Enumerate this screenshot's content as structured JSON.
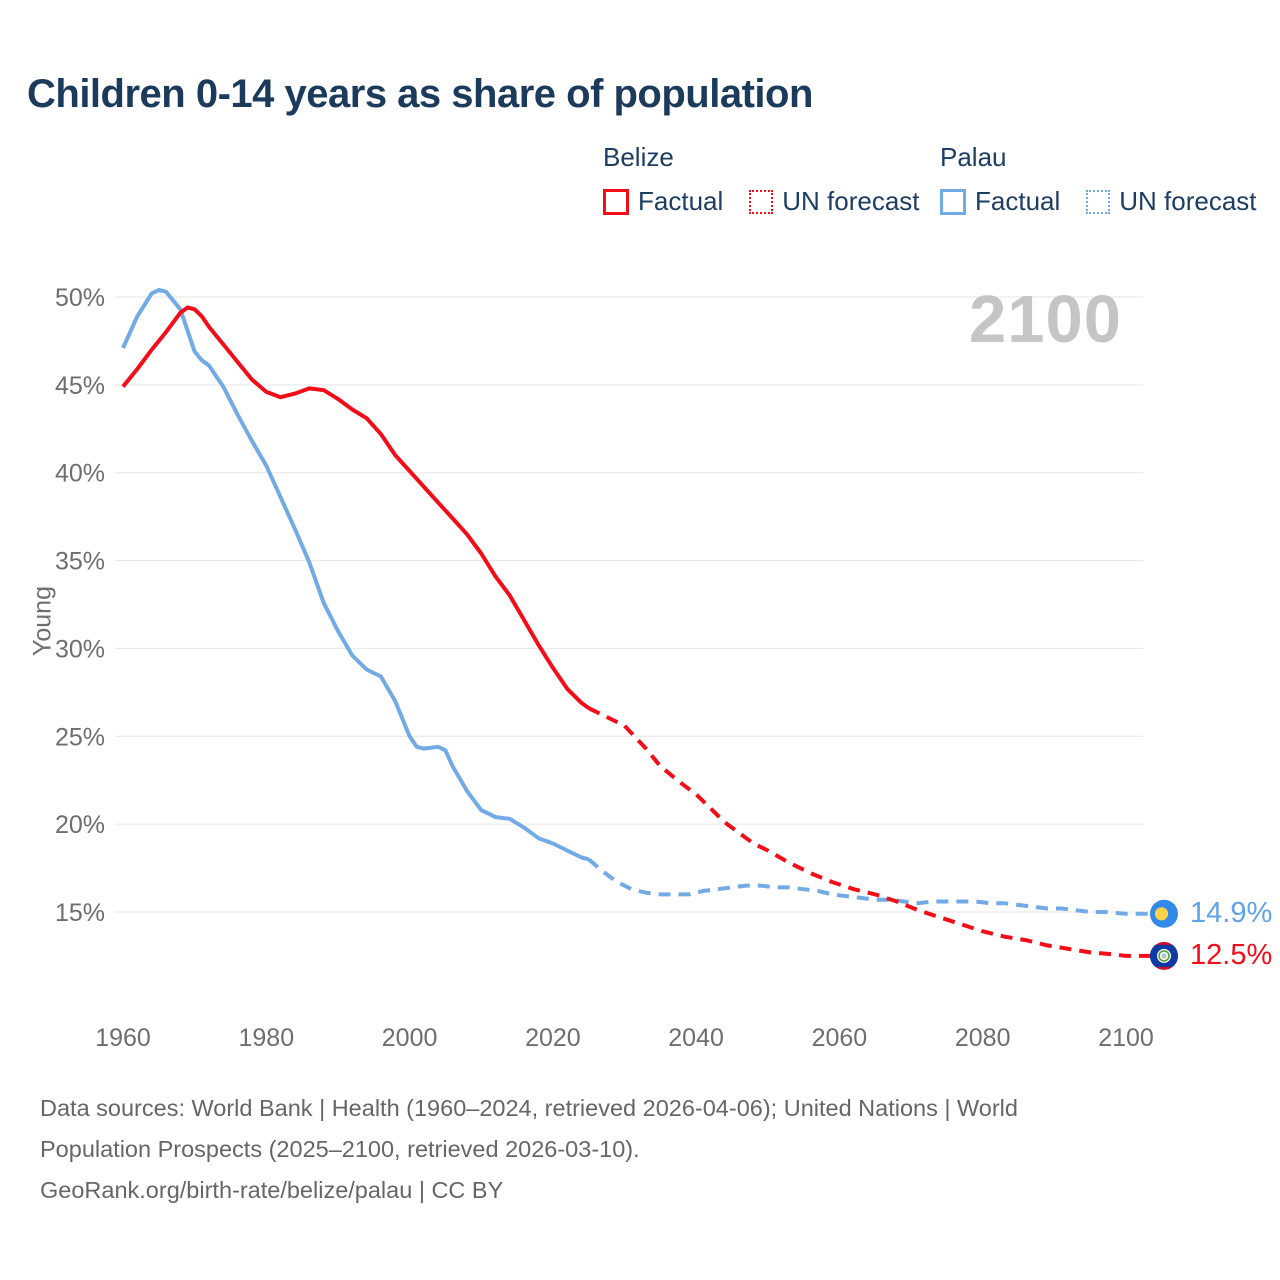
{
  "title": "Children 0-14 years as share of population",
  "watermark": "2100",
  "legend": {
    "groups": [
      {
        "name": "Belize",
        "color": "#f20d19",
        "items": [
          {
            "label": "Factual",
            "style": "solid"
          },
          {
            "label": "UN forecast",
            "style": "dotted"
          }
        ]
      },
      {
        "name": "Palau",
        "color": "#72aae6",
        "items": [
          {
            "label": "Factual",
            "style": "solid"
          },
          {
            "label": "UN forecast",
            "style": "dotted"
          }
        ]
      }
    ]
  },
  "end_labels": [
    {
      "series": "Palau",
      "text": "14.9%",
      "value": 14.9
    },
    {
      "series": "Belize",
      "text": "12.5%",
      "value": 12.5
    }
  ],
  "footer": {
    "line1": "Data sources: World Bank | Health (1960–2024, retrieved 2026-04-06); United Nations | World",
    "line2": "Population Prospects (2025–2100, retrieved 2026-03-10).",
    "line3": "GeoRank.org/birth-rate/belize/palau | CC BY"
  },
  "colors": {
    "belize": "#f20d19",
    "palau": "#72aae6",
    "title_text": "#1b3a5c",
    "tick_text": "#6e6e6e",
    "gridline": "#e6e6e6",
    "watermark": "#c5c5c5",
    "footer_text": "#666666"
  },
  "chart_data": {
    "type": "line",
    "title": "Children 0-14 years as share of population",
    "xlabel": "",
    "ylabel": "Young",
    "xlim": [
      1960,
      2100
    ],
    "ylim": [
      12,
      51
    ],
    "grid": true,
    "legend_position": "top",
    "x_ticks": [
      1960,
      1980,
      2000,
      2020,
      2040,
      2060,
      2080,
      2100
    ],
    "y_ticks": [
      50,
      45,
      40,
      35,
      30,
      25,
      20,
      15
    ],
    "y_tick_suffix": "%",
    "series": [
      {
        "name": "Palau Factual",
        "country": "Palau",
        "kind": "factual",
        "color": "#72aae6",
        "dashed": false,
        "points": [
          [
            1960,
            47.1
          ],
          [
            1962,
            48.9
          ],
          [
            1964,
            50.2
          ],
          [
            1965,
            50.4
          ],
          [
            1966,
            50.3
          ],
          [
            1968,
            49.3
          ],
          [
            1970,
            46.9
          ],
          [
            1971,
            46.4
          ],
          [
            1972,
            46.1
          ],
          [
            1973,
            45.5
          ],
          [
            1974,
            44.9
          ],
          [
            1976,
            43.3
          ],
          [
            1978,
            41.8
          ],
          [
            1980,
            40.4
          ],
          [
            1982,
            38.6
          ],
          [
            1984,
            36.8
          ],
          [
            1986,
            34.9
          ],
          [
            1988,
            32.6
          ],
          [
            1990,
            31.0
          ],
          [
            1992,
            29.6
          ],
          [
            1994,
            28.8
          ],
          [
            1996,
            28.4
          ],
          [
            1998,
            27.0
          ],
          [
            2000,
            25.0
          ],
          [
            2001,
            24.4
          ],
          [
            2002,
            24.3
          ],
          [
            2004,
            24.4
          ],
          [
            2005,
            24.2
          ],
          [
            2006,
            23.3
          ],
          [
            2008,
            21.9
          ],
          [
            2010,
            20.8
          ],
          [
            2012,
            20.4
          ],
          [
            2014,
            20.3
          ],
          [
            2016,
            19.8
          ],
          [
            2018,
            19.2
          ],
          [
            2020,
            18.9
          ],
          [
            2022,
            18.5
          ],
          [
            2024,
            18.1
          ],
          [
            2025,
            18.0
          ]
        ]
      },
      {
        "name": "Palau UN forecast",
        "country": "Palau",
        "kind": "forecast",
        "color": "#72aae6",
        "dashed": true,
        "extend_to_marker": true,
        "points": [
          [
            2025,
            18.0
          ],
          [
            2027,
            17.3
          ],
          [
            2029,
            16.7
          ],
          [
            2031,
            16.3
          ],
          [
            2033,
            16.1
          ],
          [
            2035,
            16.0
          ],
          [
            2037,
            16.0
          ],
          [
            2039,
            16.0
          ],
          [
            2041,
            16.2
          ],
          [
            2043,
            16.3
          ],
          [
            2045,
            16.4
          ],
          [
            2047,
            16.5
          ],
          [
            2049,
            16.5
          ],
          [
            2051,
            16.4
          ],
          [
            2053,
            16.4
          ],
          [
            2055,
            16.3
          ],
          [
            2057,
            16.2
          ],
          [
            2059,
            16.0
          ],
          [
            2061,
            15.9
          ],
          [
            2063,
            15.8
          ],
          [
            2065,
            15.7
          ],
          [
            2067,
            15.7
          ],
          [
            2069,
            15.6
          ],
          [
            2071,
            15.5
          ],
          [
            2073,
            15.6
          ],
          [
            2075,
            15.6
          ],
          [
            2077,
            15.6
          ],
          [
            2079,
            15.6
          ],
          [
            2081,
            15.5
          ],
          [
            2083,
            15.5
          ],
          [
            2085,
            15.4
          ],
          [
            2087,
            15.3
          ],
          [
            2089,
            15.2
          ],
          [
            2091,
            15.2
          ],
          [
            2093,
            15.1
          ],
          [
            2095,
            15.0
          ],
          [
            2097,
            15.0
          ],
          [
            2100,
            14.9
          ]
        ]
      },
      {
        "name": "Belize Factual",
        "country": "Belize",
        "kind": "factual",
        "color": "#f20d19",
        "dashed": false,
        "points": [
          [
            1960,
            44.9
          ],
          [
            1962,
            45.9
          ],
          [
            1964,
            47.0
          ],
          [
            1966,
            48.0
          ],
          [
            1968,
            49.1
          ],
          [
            1969,
            49.4
          ],
          [
            1970,
            49.3
          ],
          [
            1971,
            48.9
          ],
          [
            1972,
            48.3
          ],
          [
            1974,
            47.3
          ],
          [
            1976,
            46.3
          ],
          [
            1978,
            45.3
          ],
          [
            1980,
            44.6
          ],
          [
            1982,
            44.3
          ],
          [
            1984,
            44.5
          ],
          [
            1986,
            44.8
          ],
          [
            1988,
            44.7
          ],
          [
            1990,
            44.2
          ],
          [
            1992,
            43.6
          ],
          [
            1994,
            43.1
          ],
          [
            1996,
            42.2
          ],
          [
            1998,
            41.0
          ],
          [
            2000,
            40.1
          ],
          [
            2002,
            39.2
          ],
          [
            2004,
            38.3
          ],
          [
            2006,
            37.4
          ],
          [
            2008,
            36.5
          ],
          [
            2010,
            35.4
          ],
          [
            2012,
            34.1
          ],
          [
            2014,
            33.0
          ],
          [
            2016,
            31.6
          ],
          [
            2018,
            30.2
          ],
          [
            2020,
            28.9
          ],
          [
            2022,
            27.7
          ],
          [
            2024,
            26.9
          ],
          [
            2025,
            26.6
          ]
        ]
      },
      {
        "name": "Belize UN forecast",
        "country": "Belize",
        "kind": "forecast",
        "color": "#f20d19",
        "dashed": true,
        "extend_to_marker": true,
        "points": [
          [
            2025,
            26.6
          ],
          [
            2028,
            26.0
          ],
          [
            2030,
            25.6
          ],
          [
            2033,
            24.3
          ],
          [
            2035,
            23.3
          ],
          [
            2038,
            22.3
          ],
          [
            2040,
            21.7
          ],
          [
            2042,
            20.9
          ],
          [
            2044,
            20.1
          ],
          [
            2046,
            19.5
          ],
          [
            2048,
            18.9
          ],
          [
            2050,
            18.5
          ],
          [
            2053,
            17.8
          ],
          [
            2056,
            17.2
          ],
          [
            2059,
            16.7
          ],
          [
            2062,
            16.3
          ],
          [
            2065,
            16.0
          ],
          [
            2068,
            15.6
          ],
          [
            2071,
            15.1
          ],
          [
            2074,
            14.7
          ],
          [
            2077,
            14.3
          ],
          [
            2080,
            13.9
          ],
          [
            2083,
            13.6
          ],
          [
            2086,
            13.4
          ],
          [
            2089,
            13.1
          ],
          [
            2092,
            12.9
          ],
          [
            2095,
            12.7
          ],
          [
            2098,
            12.6
          ],
          [
            2100,
            12.5
          ]
        ]
      }
    ],
    "end_markers": [
      {
        "country": "Palau",
        "year": 2100,
        "value": 14.9,
        "label": "14.9%"
      },
      {
        "country": "Belize",
        "year": 2100,
        "value": 12.5,
        "label": "12.5%"
      }
    ]
  }
}
